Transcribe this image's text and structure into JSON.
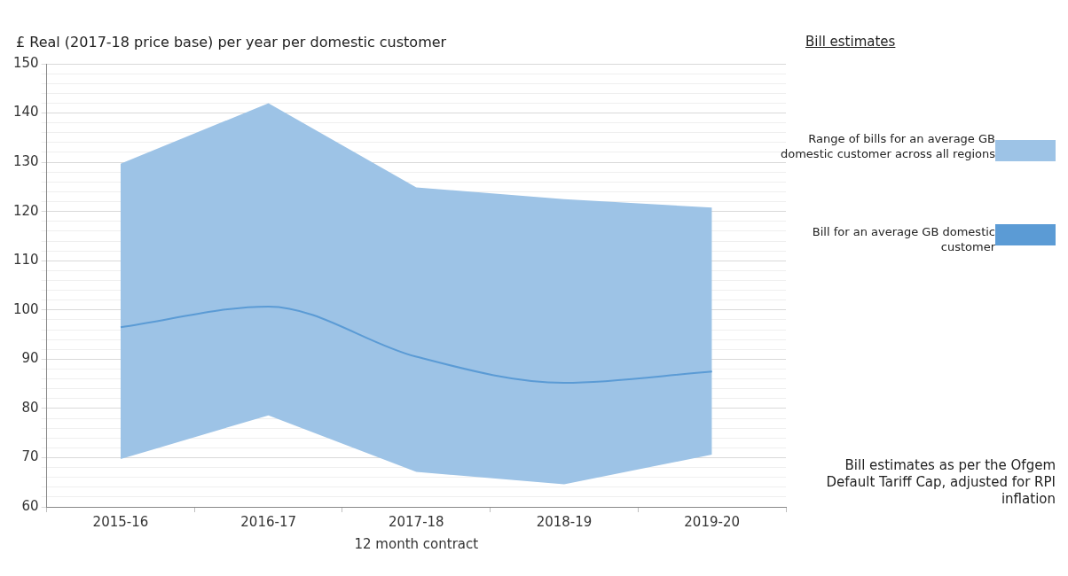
{
  "chart_data": {
    "type": "line",
    "ylabel": "£ Real (2017-18 price base) per year per domestic customer",
    "xlabel": "12 month contract",
    "legend_title": "Bill estimates",
    "categories": [
      "2015-16",
      "2016-17",
      "2017-18",
      "2018-19",
      "2019-20"
    ],
    "series": [
      {
        "name": "Bill for an average GB domestic customer",
        "type": "line",
        "color": "#5b9bd5",
        "values": [
          96.5,
          100.7,
          90.5,
          85.2,
          87.5
        ],
        "lower": [
          69.7,
          78.6,
          67.1,
          64.6,
          70.6
        ],
        "upper": [
          129.7,
          142,
          124.9,
          122.5,
          120.8
        ]
      }
    ],
    "ylim": [
      60,
      150
    ],
    "yticks": [
      60,
      {
        "value": 62,
        "label": null
      },
      {
        "value": 64,
        "label": null
      },
      {
        "value": 66,
        "label": null
      },
      {
        "value": 68,
        "label": null
      },
      70,
      {
        "value": 72,
        "label": null
      },
      {
        "value": 74,
        "label": null
      },
      {
        "value": 76,
        "label": null
      },
      {
        "value": 78,
        "label": null
      },
      80,
      {
        "value": 82,
        "label": null
      },
      {
        "value": 84,
        "label": null
      },
      {
        "value": 86,
        "label": null
      },
      {
        "value": 88,
        "label": null
      },
      90,
      {
        "value": 92,
        "label": null
      },
      {
        "value": 94,
        "label": null
      },
      {
        "value": 96,
        "label": null
      },
      {
        "value": 98,
        "label": null
      },
      100,
      {
        "value": 102,
        "label": null
      },
      {
        "value": 104,
        "label": null
      },
      {
        "value": 106,
        "label": null
      },
      {
        "value": 108,
        "label": null
      },
      110,
      {
        "value": 112,
        "label": null
      },
      {
        "value": 114,
        "label": null
      },
      {
        "value": 116,
        "label": null
      },
      {
        "value": 118,
        "label": null
      },
      120,
      {
        "value": 122,
        "label": null
      },
      {
        "value": 124,
        "label": null
      },
      {
        "value": 126,
        "label": null
      },
      {
        "value": 128,
        "label": null
      },
      130,
      {
        "value": 132,
        "label": null
      },
      {
        "value": 134,
        "label": null
      },
      {
        "value": 136,
        "label": null
      },
      {
        "value": 138,
        "label": null
      },
      140,
      {
        "value": 142,
        "label": null
      },
      {
        "value": 144,
        "label": null
      },
      {
        "value": 146,
        "label": null
      },
      {
        "value": 148,
        "label": null
      },
      150
    ],
    "grid": "y",
    "legend": "right",
    "marker": "none",
    "annotations": [
      "Range of bills for an average GB domestic customer across all regions",
      "Bill estimates as per the Ofgem Default Tariff Cap, adjusted for RPI inflation"
    ]
  }
}
